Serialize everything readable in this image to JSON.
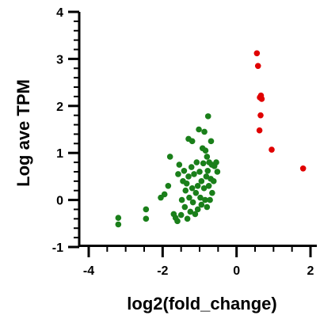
{
  "chart_data": {
    "type": "scatter",
    "title": "",
    "xlabel": "log2(fold_change)",
    "ylabel": "Log ave TPM",
    "xlim": [
      -4,
      2
    ],
    "ylim": [
      -1,
      4
    ],
    "x_ticks": [
      "-4",
      "-2",
      "0",
      "2"
    ],
    "y_ticks": [
      "-1",
      "0",
      "1",
      "2",
      "3",
      "4"
    ],
    "grid": false,
    "legend": "none",
    "series": [
      {
        "color": "#1a7f1a",
        "points": [
          [
            -3.2,
            -0.38
          ],
          [
            -3.2,
            -0.52
          ],
          [
            -2.45,
            -0.2
          ],
          [
            -2.45,
            -0.4
          ],
          [
            -2.05,
            0.05
          ],
          [
            -1.95,
            0.12
          ],
          [
            -1.85,
            0.3
          ],
          [
            -1.8,
            0.92
          ],
          [
            -1.7,
            -0.3
          ],
          [
            -1.65,
            -0.38
          ],
          [
            -1.6,
            -0.45
          ],
          [
            -1.58,
            0.55
          ],
          [
            -1.55,
            0.75
          ],
          [
            -1.5,
            -0.32
          ],
          [
            -1.48,
            0.0
          ],
          [
            -1.45,
            0.4
          ],
          [
            -1.42,
            0.62
          ],
          [
            -1.4,
            -0.15
          ],
          [
            -1.38,
            0.2
          ],
          [
            -1.35,
            0.35
          ],
          [
            -1.33,
            -0.4
          ],
          [
            -1.3,
            1.3
          ],
          [
            -1.3,
            0.5
          ],
          [
            -1.28,
            0.05
          ],
          [
            -1.25,
            -0.25
          ],
          [
            -1.22,
            0.7
          ],
          [
            -1.2,
            1.25
          ],
          [
            -1.2,
            0.25
          ],
          [
            -1.18,
            -0.05
          ],
          [
            -1.15,
            0.55
          ],
          [
            -1.12,
            -0.3
          ],
          [
            -1.1,
            0.15
          ],
          [
            -1.08,
            0.8
          ],
          [
            -1.05,
            0.3
          ],
          [
            -1.05,
            -0.2
          ],
          [
            -1.02,
            1.5
          ],
          [
            -1.0,
            0.6
          ],
          [
            -0.98,
            0.05
          ],
          [
            -0.95,
            0.4
          ],
          [
            -0.95,
            -0.1
          ],
          [
            -0.92,
            1.1
          ],
          [
            -0.9,
            0.78
          ],
          [
            -0.88,
            0.25
          ],
          [
            -0.87,
            1.45
          ],
          [
            -0.85,
            0.0
          ],
          [
            -0.84,
            1.05
          ],
          [
            -0.82,
            0.5
          ],
          [
            -0.8,
            0.92
          ],
          [
            -0.8,
            -0.15
          ],
          [
            -0.78,
            0.62
          ],
          [
            -0.77,
            1.78
          ],
          [
            -0.75,
            0.3
          ],
          [
            -0.74,
            0.8
          ],
          [
            -0.72,
            0.0
          ],
          [
            -0.7,
            0.45
          ],
          [
            -0.69,
            1.25
          ],
          [
            -0.67,
            0.75
          ],
          [
            -0.66,
            0.15
          ],
          [
            -0.62,
            0.4
          ],
          [
            -0.6,
            0.72
          ],
          [
            -0.55,
            0.8
          ],
          [
            -0.52,
            0.6
          ]
        ]
      },
      {
        "color": "#e00000",
        "points": [
          [
            0.55,
            3.12
          ],
          [
            0.58,
            2.85
          ],
          [
            0.62,
            1.48
          ],
          [
            0.63,
            2.18
          ],
          [
            0.65,
            1.8
          ],
          [
            0.66,
            2.22
          ],
          [
            0.68,
            2.15
          ],
          [
            0.95,
            1.07
          ],
          [
            1.8,
            0.67
          ]
        ]
      }
    ]
  }
}
